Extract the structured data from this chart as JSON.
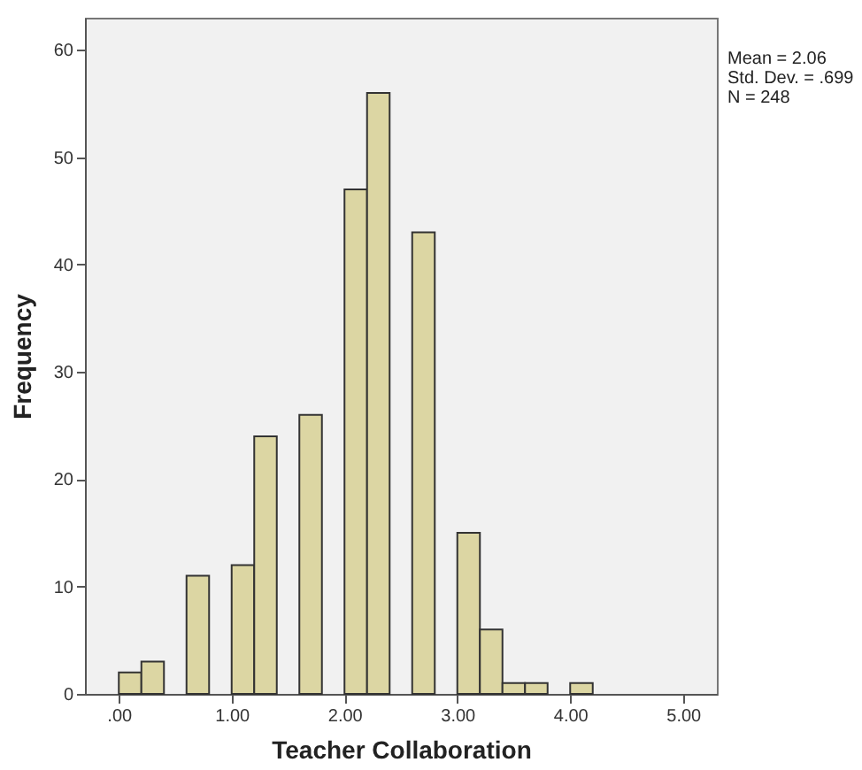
{
  "chart_data": {
    "type": "histogram",
    "xlabel": "Teacher Collaboration",
    "ylabel": "Frequency",
    "bins": [
      0,
      0.2,
      0.4,
      0.6,
      0.8,
      1.0,
      1.2,
      1.4,
      1.6,
      1.8,
      2.0,
      2.2,
      2.4,
      2.6,
      2.8,
      3.0,
      3.2,
      3.4,
      3.6,
      3.8,
      4.0,
      4.2
    ],
    "values": [
      2,
      3,
      0,
      11,
      0,
      12,
      24,
      0,
      26,
      0,
      47,
      56,
      0,
      43,
      0,
      15,
      6,
      1,
      1,
      0,
      1
    ],
    "color": "#dcd6a3",
    "xlim": [
      -0.3,
      5.3
    ],
    "xticks": [
      {
        "value": 0,
        "label": ".00"
      },
      {
        "value": 1,
        "label": "1.00"
      },
      {
        "value": 2,
        "label": "2.00"
      },
      {
        "value": 3,
        "label": "3.00"
      },
      {
        "value": 4,
        "label": "4.00"
      },
      {
        "value": 5,
        "label": "5.00"
      }
    ],
    "ylim": [
      0,
      63
    ],
    "yticks": [
      0,
      10,
      20,
      30,
      40,
      50,
      60
    ],
    "grid": false,
    "annotations": [
      "Mean = 2.06",
      "Std. Dev. = .699",
      "N = 248"
    ]
  }
}
